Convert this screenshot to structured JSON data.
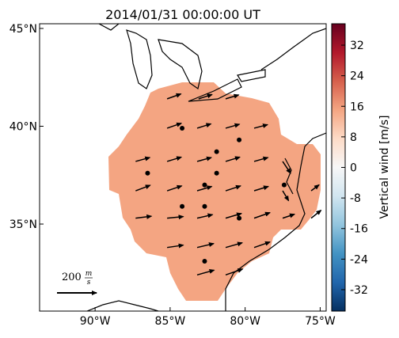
{
  "map": {
    "title": "2014/01/31 00:00:00 UT",
    "xlim": [
      -93.7,
      -74.6
    ],
    "ylim": [
      30.55,
      45.24
    ],
    "xticks": [
      {
        "value": -90,
        "label": "90°W"
      },
      {
        "value": -85,
        "label": "85°W"
      },
      {
        "value": -80,
        "label": "80°W"
      },
      {
        "value": -75,
        "label": "75°W"
      }
    ],
    "yticks": [
      {
        "value": 35,
        "label": "35°N"
      },
      {
        "value": 40,
        "label": "40°N"
      },
      {
        "value": 45,
        "label": "45°N"
      }
    ],
    "colorbar": {
      "label": "Vertical wind [m/s]",
      "clim": [
        -37.6,
        37.6
      ],
      "ticks": [
        -32,
        -24,
        -16,
        -8,
        0,
        8,
        16,
        24,
        32
      ],
      "colormap": [
        "#053061",
        "#2166ac",
        "#4393c3",
        "#92c5de",
        "#d1e5f0",
        "#f7f7f7",
        "#fddbc7",
        "#f4a582",
        "#d6604d",
        "#b2182b",
        "#67001f"
      ]
    },
    "region_value": 15,
    "vectors": [
      [
        -85.2,
        41.4,
        70,
        25
      ],
      [
        -83.1,
        41.4,
        68,
        22
      ],
      [
        -81.3,
        41.4,
        66,
        20
      ],
      [
        -85.2,
        39.9,
        72,
        25
      ],
      [
        -83.2,
        39.9,
        70,
        22
      ],
      [
        -81.3,
        39.9,
        70,
        20
      ],
      [
        -79.4,
        39.9,
        68,
        18
      ],
      [
        -87.3,
        38.2,
        72,
        20
      ],
      [
        -85.2,
        38.2,
        72,
        22
      ],
      [
        -83.2,
        38.2,
        72,
        20
      ],
      [
        -81.3,
        38.2,
        72,
        22
      ],
      [
        -79.4,
        38.2,
        70,
        20
      ],
      [
        -77.5,
        38.2,
        40,
        -60
      ],
      [
        -87.3,
        36.7,
        74,
        28
      ],
      [
        -85.2,
        36.7,
        74,
        25
      ],
      [
        -83.2,
        36.7,
        74,
        22
      ],
      [
        -81.3,
        36.7,
        76,
        25
      ],
      [
        -79.4,
        36.7,
        72,
        22
      ],
      [
        -77.5,
        36.7,
        30,
        -50
      ],
      [
        -75.6,
        36.7,
        40,
        30
      ],
      [
        -87.3,
        35.3,
        80,
        10
      ],
      [
        -85.2,
        35.3,
        82,
        8
      ],
      [
        -83.2,
        35.3,
        78,
        18
      ],
      [
        -81.3,
        35.3,
        80,
        24
      ],
      [
        -79.4,
        35.3,
        80,
        28
      ],
      [
        -77.5,
        35.3,
        60,
        20
      ],
      [
        -75.6,
        35.3,
        50,
        40
      ],
      [
        -85.2,
        33.8,
        82,
        12
      ],
      [
        -83.2,
        33.8,
        84,
        20
      ],
      [
        -81.3,
        33.8,
        84,
        24
      ],
      [
        -79.4,
        33.8,
        80,
        28
      ],
      [
        -83.2,
        32.4,
        86,
        24
      ],
      [
        -81.3,
        32.4,
        86,
        30
      ]
    ],
    "stations": [
      [
        -84.2,
        39.9
      ],
      [
        -80.4,
        39.3
      ],
      [
        -81.9,
        38.7
      ],
      [
        -86.5,
        37.6
      ],
      [
        -81.9,
        37.6
      ],
      [
        -82.7,
        37.0
      ],
      [
        -77.4,
        37.0
      ],
      [
        -84.2,
        35.9
      ],
      [
        -82.7,
        35.9
      ],
      [
        -80.4,
        35.3
      ],
      [
        -82.7,
        33.1
      ]
    ],
    "reference_vector": {
      "value": 200,
      "unit_numerator": "m",
      "unit_denominator": "s"
    }
  }
}
